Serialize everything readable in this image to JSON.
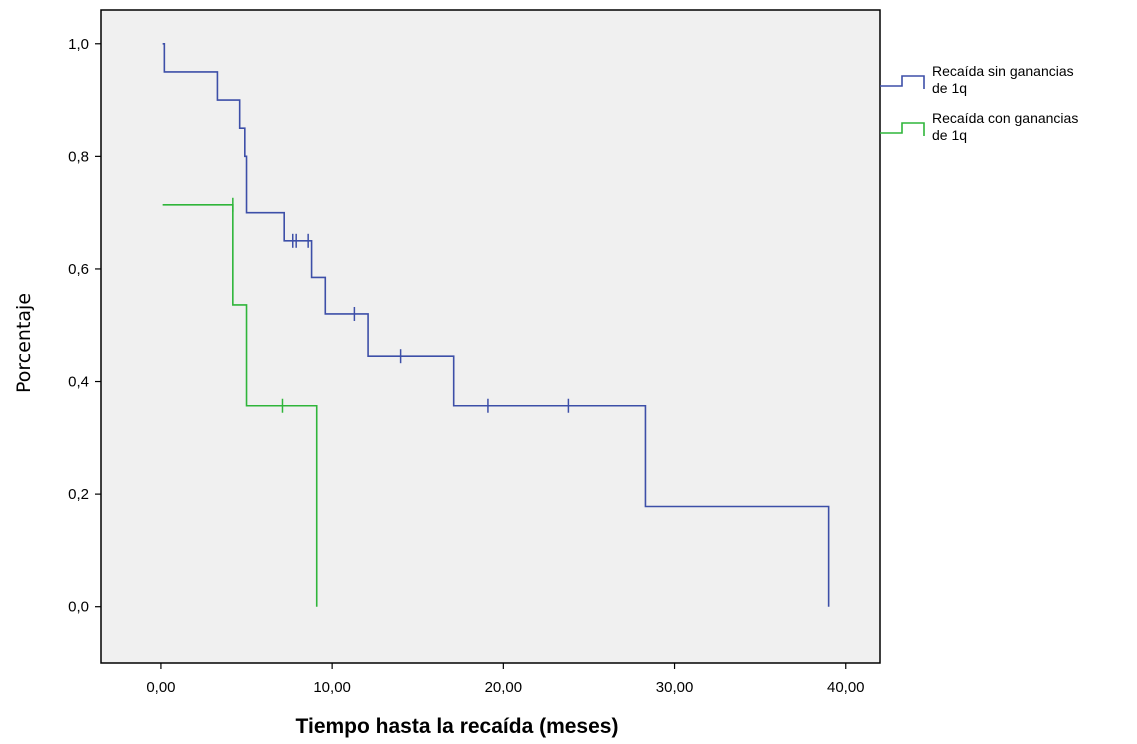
{
  "chart_data": {
    "type": "line",
    "step": true,
    "title": "",
    "xlabel": "Tiempo hasta la recaída (meses)",
    "ylabel": "Porcentaje",
    "xlim": [
      -3.5,
      42
    ],
    "ylim": [
      -0.1,
      1.06
    ],
    "x_ticks": [
      0,
      10,
      20,
      30,
      40
    ],
    "x_tick_labels": [
      "0,00",
      "10,00",
      "20,00",
      "30,00",
      "40,00"
    ],
    "y_ticks": [
      0,
      0.2,
      0.4,
      0.6,
      0.8,
      1.0
    ],
    "y_tick_labels": [
      "0,0",
      "0,2",
      "0,4",
      "0,6",
      "0,8",
      "1,0"
    ],
    "grid": false,
    "background": "#f0f0f0",
    "legend_position": "right",
    "series": [
      {
        "name": "Recaída sin ganancias de 1q",
        "legend_lines": [
          "Recaída sin ganancias",
          "de 1q"
        ],
        "color": "#3d4fa8",
        "steps": [
          [
            0.1,
            1.0
          ],
          [
            0.2,
            0.95
          ],
          [
            3.3,
            0.9
          ],
          [
            4.6,
            0.85
          ],
          [
            4.9,
            0.8
          ],
          [
            5.0,
            0.7
          ],
          [
            7.2,
            0.65
          ],
          [
            8.6,
            0.65
          ],
          [
            8.8,
            0.585
          ],
          [
            9.6,
            0.52
          ],
          [
            12.1,
            0.445
          ],
          [
            17.1,
            0.357
          ],
          [
            28.3,
            0.178
          ],
          [
            39.0,
            0.0
          ]
        ],
        "end_x": 39.0,
        "censored": [
          {
            "x": 7.7,
            "y": 0.65
          },
          {
            "x": 7.9,
            "y": 0.65
          },
          {
            "x": 8.6,
            "y": 0.65
          },
          {
            "x": 11.3,
            "y": 0.52
          },
          {
            "x": 14.0,
            "y": 0.445
          },
          {
            "x": 19.1,
            "y": 0.357
          },
          {
            "x": 23.8,
            "y": 0.357
          }
        ]
      },
      {
        "name": "Recaída con ganancias de 1q",
        "legend_lines": [
          "Recaída con ganancias",
          "de 1q"
        ],
        "color": "#2fb53a",
        "steps": [
          [
            0.1,
            0.714
          ],
          [
            4.2,
            0.536
          ],
          [
            5.0,
            0.357
          ],
          [
            9.1,
            0.0
          ]
        ],
        "end_x": 9.1,
        "censored": [
          {
            "x": 4.2,
            "y": 0.714
          },
          {
            "x": 7.1,
            "y": 0.357
          }
        ]
      }
    ]
  }
}
